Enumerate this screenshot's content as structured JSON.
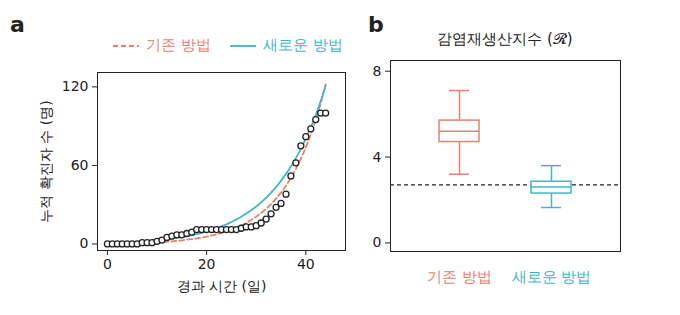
{
  "chart_data": [
    {
      "type": "line",
      "annotations": [
        "a"
      ],
      "xlabel": "경과 시간 (일)",
      "ylabel": "누적 확진자 수 (명)",
      "x": [
        0,
        1,
        2,
        3,
        4,
        5,
        6,
        7,
        8,
        9,
        10,
        11,
        12,
        13,
        14,
        15,
        16,
        17,
        18,
        19,
        20,
        21,
        22,
        23,
        24,
        25,
        26,
        27,
        28,
        29,
        30,
        31,
        32,
        33,
        34,
        35,
        36,
        37,
        38,
        39,
        40,
        41,
        42,
        43,
        44
      ],
      "series": [
        {
          "type": "scatter",
          "marker": "circle",
          "color": "#222222",
          "values": [
            0,
            0,
            0,
            0,
            0,
            0,
            0,
            1,
            1,
            1,
            2,
            3,
            5,
            6,
            7,
            7,
            8,
            9,
            11,
            11,
            11,
            11,
            11,
            11,
            11,
            11,
            11,
            12,
            13,
            13,
            14,
            16,
            19,
            23,
            28,
            31,
            38,
            52,
            62,
            75,
            82,
            88,
            95,
            100,
            100
          ]
        },
        {
          "name": "기존 방법",
          "type": "line",
          "color": "#e8806f",
          "line_style": "dashed",
          "values": [
            0,
            0.1,
            0.1,
            0.2,
            0.3,
            0.4,
            0.6,
            0.7,
            0.9,
            1.0,
            1.2,
            1.5,
            1.7,
            2.0,
            2.4,
            2.8,
            3.2,
            3.7,
            4.2,
            4.9,
            5.6,
            6.4,
            7.3,
            8.4,
            9.5,
            10.9,
            12.4,
            14.1,
            16.1,
            18.3,
            20.8,
            23.6,
            26.8,
            30.4,
            34.6,
            39.2,
            44.5,
            50.5,
            57.3,
            65.0,
            73.7,
            83.6,
            94.8,
            107.5,
            121.9
          ]
        },
        {
          "name": "새로운 방법",
          "type": "line",
          "color": "#45b5c4",
          "line_style": "solid",
          "values": [
            0,
            0.2,
            0.3,
            0.5,
            0.7,
            1.0,
            1.2,
            1.5,
            1.8,
            2.2,
            2.6,
            3.0,
            3.5,
            4.0,
            4.6,
            5.2,
            5.9,
            6.7,
            7.6,
            8.5,
            9.6,
            10.7,
            12.0,
            13.5,
            15.0,
            16.8,
            18.7,
            20.8,
            23.2,
            25.8,
            28.6,
            31.8,
            35.3,
            39.2,
            43.4,
            48.2,
            53.4,
            59.2,
            65.6,
            72.6,
            80.4,
            89.0,
            98.5,
            109.1,
            120.7
          ]
        }
      ],
      "xlim": [
        -2,
        48
      ],
      "ylim": [
        -5,
        131
      ],
      "xticks": [
        0,
        20,
        40
      ],
      "yticks": [
        0,
        60,
        120
      ],
      "legend": "top"
    },
    {
      "type": "box",
      "annotations": [
        "b"
      ],
      "title": "감염재생산지수 (𝓡)",
      "categories": [
        "기존 방법",
        "새로운 방법"
      ],
      "colors": [
        "#e8806f",
        "#45b5c4"
      ],
      "min": [
        3.2,
        1.65
      ],
      "q1": [
        4.7,
        2.3
      ],
      "median": [
        5.2,
        2.6
      ],
      "q3": [
        5.7,
        2.85
      ],
      "max": [
        7.1,
        3.6
      ],
      "reference_line": 2.7,
      "ylim": [
        -0.4,
        8.5
      ],
      "yticks": [
        0,
        4,
        8
      ]
    }
  ]
}
